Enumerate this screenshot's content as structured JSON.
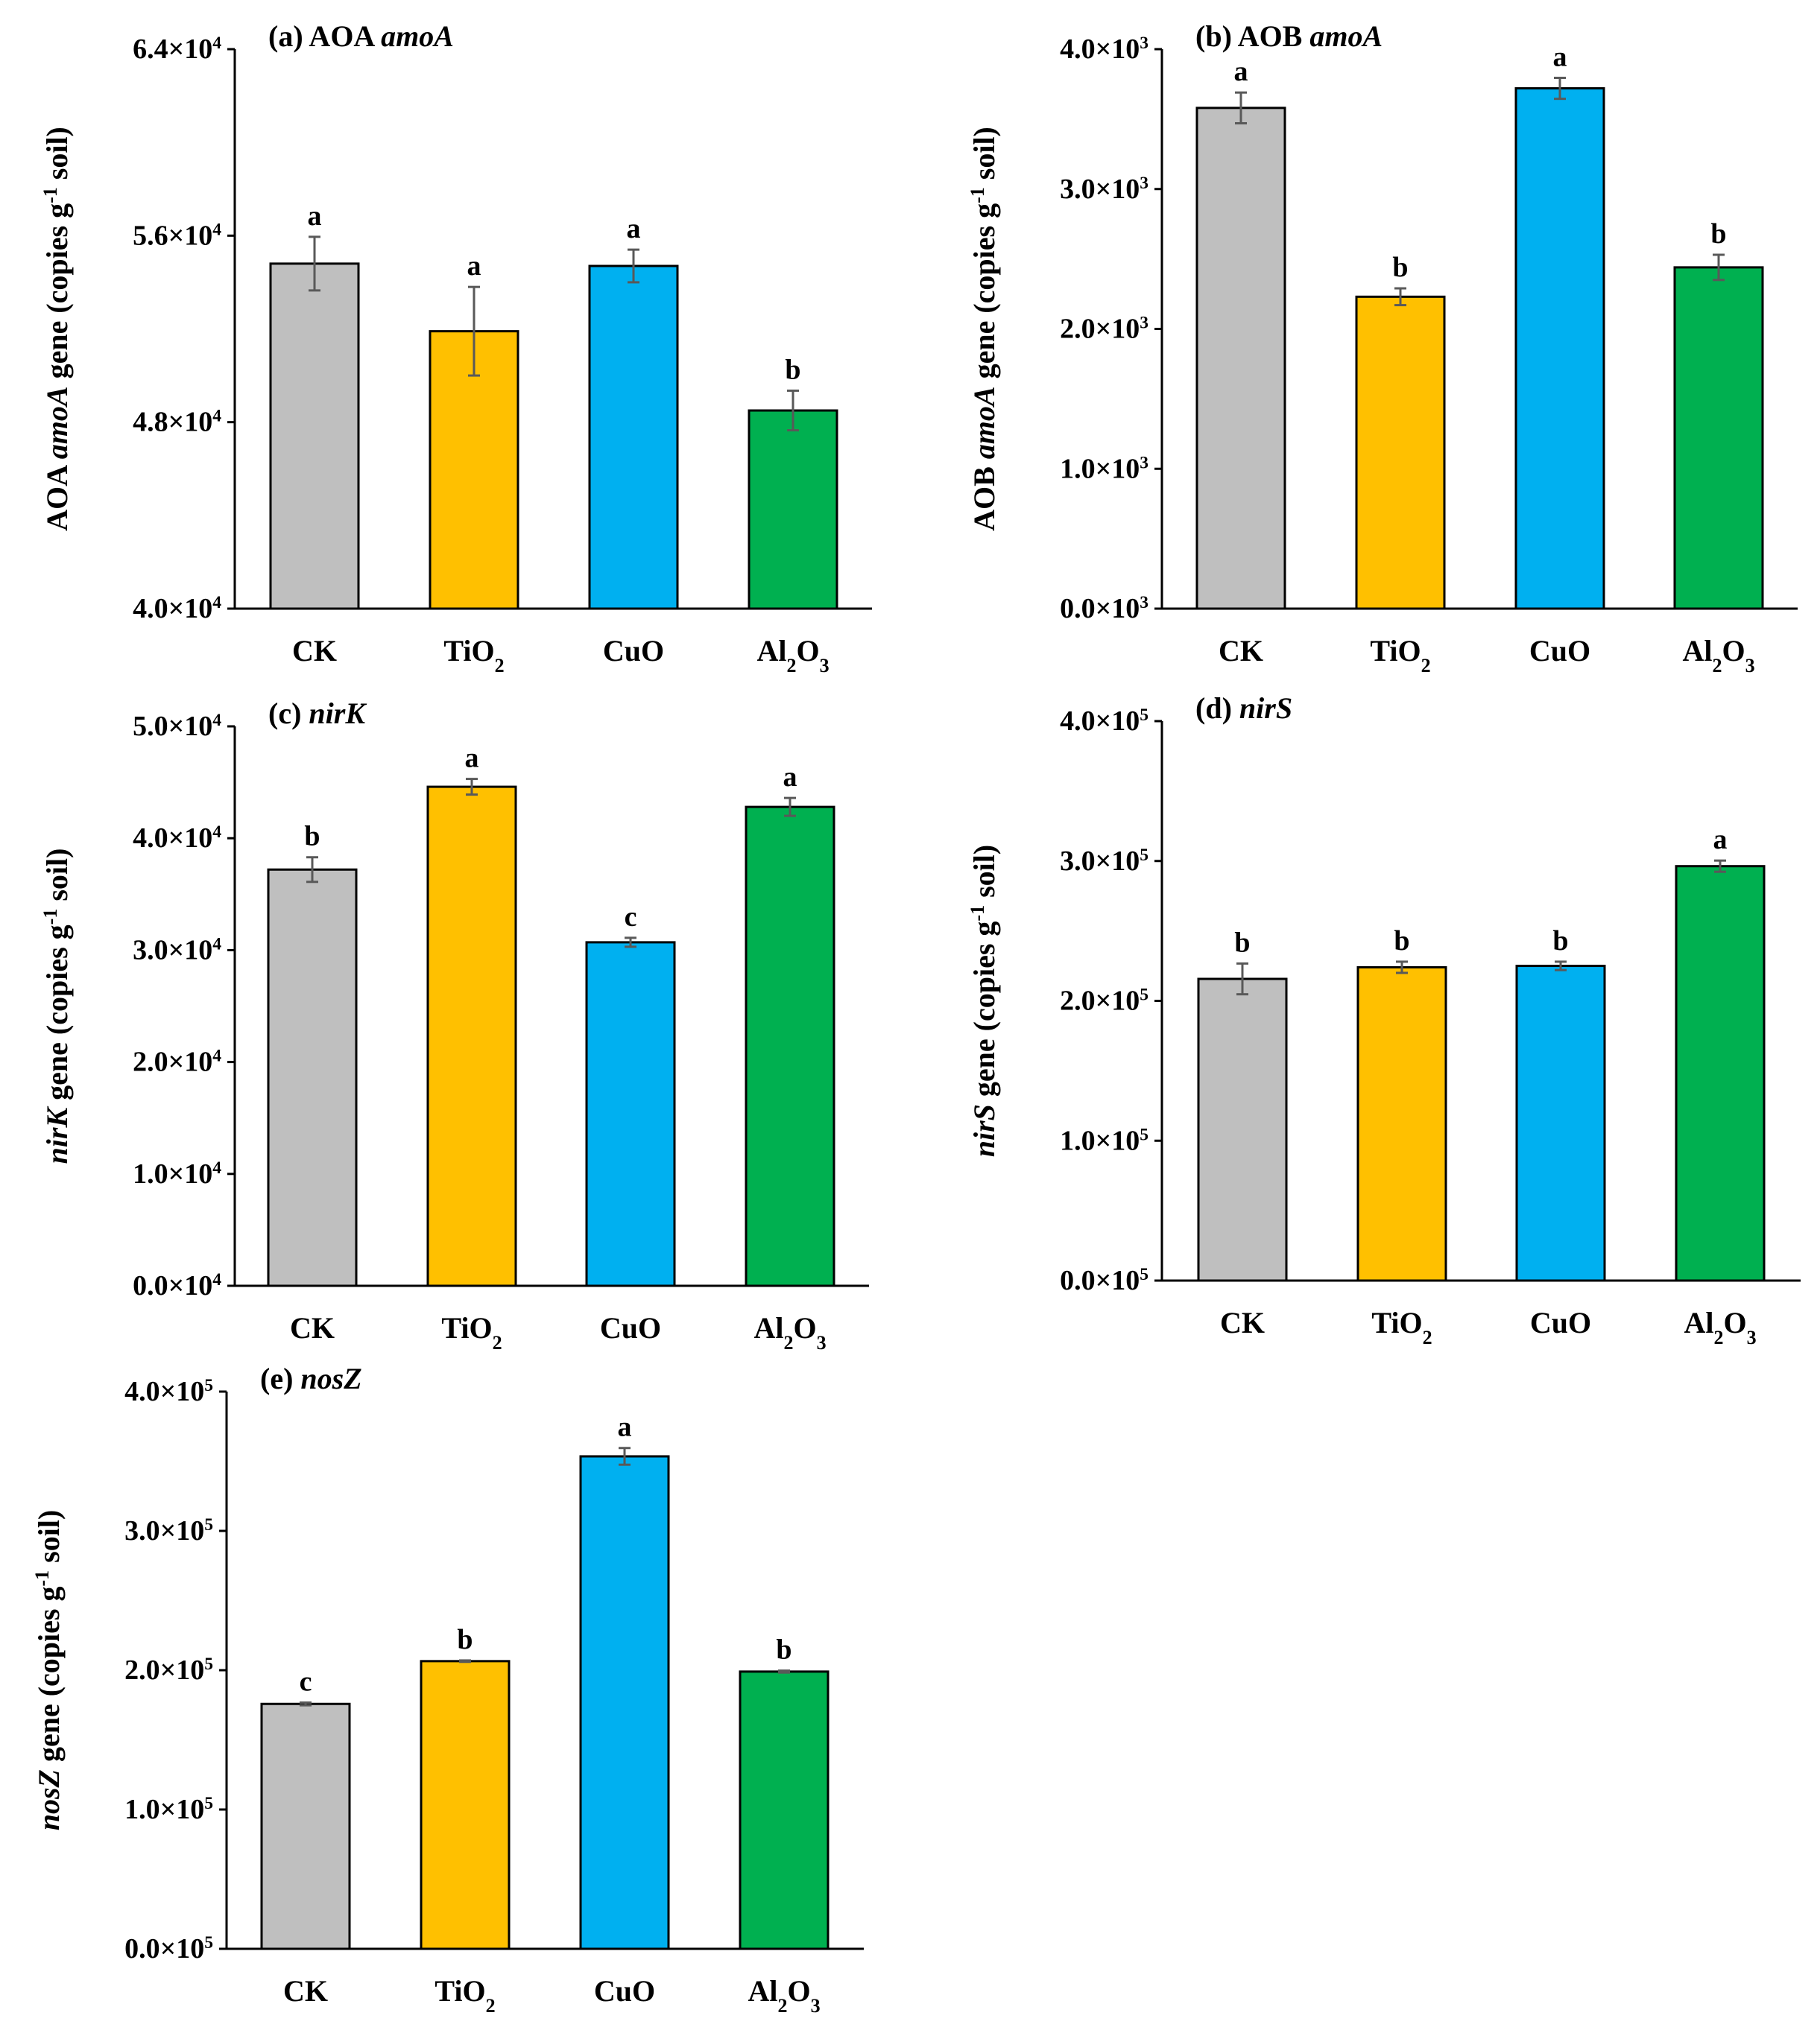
{
  "chart_data": [
    {
      "type": "bar",
      "panel": "a",
      "title": [
        {
          "t": "(a) AOA "
        },
        {
          "t": "amoA",
          "i": true
        }
      ],
      "ylabel": [
        {
          "t": "AOA "
        },
        {
          "t": "amoA",
          "i": true
        },
        {
          "t": " gene (copies g"
        },
        {
          "t": "-1",
          "sup": true
        },
        {
          "t": " soil)"
        }
      ],
      "categories": [
        "CK",
        "TiO2",
        "CuO",
        "Al2O3"
      ],
      "values": [
        54800,
        51900,
        54700,
        48500
      ],
      "errors": [
        1150,
        1900,
        700,
        850
      ],
      "letters": [
        "a",
        "a",
        "a",
        "b"
      ],
      "ylim": [
        40000,
        64000
      ],
      "ticks": [
        40000,
        48000,
        56000,
        64000
      ],
      "tick_labels": [
        {
          "m": "4.0×10",
          "e": "4"
        },
        {
          "m": "4.8×10",
          "e": "4"
        },
        {
          "m": "5.6×10",
          "e": "4"
        },
        {
          "m": "6.4×10",
          "e": "4"
        }
      ]
    },
    {
      "type": "bar",
      "panel": "b",
      "title": [
        {
          "t": "(b) AOB "
        },
        {
          "t": "amoA",
          "i": true
        }
      ],
      "ylabel": [
        {
          "t": "AOB "
        },
        {
          "t": "amoA",
          "i": true
        },
        {
          "t": " gene (copies g"
        },
        {
          "t": "-1",
          "sup": true
        },
        {
          "t": " soil)"
        }
      ],
      "categories": [
        "CK",
        "TiO2",
        "CuO",
        "Al2O3"
      ],
      "values": [
        3580,
        2230,
        3720,
        2440
      ],
      "errors": [
        110,
        60,
        75,
        90
      ],
      "letters": [
        "a",
        "b",
        "a",
        "b"
      ],
      "ylim": [
        0,
        4000
      ],
      "ticks": [
        0,
        1000,
        2000,
        3000,
        4000
      ],
      "tick_labels": [
        {
          "m": "0.0×10",
          "e": "3"
        },
        {
          "m": "1.0×10",
          "e": "3"
        },
        {
          "m": "2.0×10",
          "e": "3"
        },
        {
          "m": "3.0×10",
          "e": "3"
        },
        {
          "m": "4.0×10",
          "e": "3"
        }
      ]
    },
    {
      "type": "bar",
      "panel": "c",
      "title": [
        {
          "t": "(c) "
        },
        {
          "t": "nirK",
          "i": true
        }
      ],
      "ylabel": [
        {
          "t": "nirK",
          "i": true
        },
        {
          "t": " gene (copies g"
        },
        {
          "t": "-1",
          "sup": true
        },
        {
          "t": " soil)"
        }
      ],
      "categories": [
        "CK",
        "TiO2",
        "CuO",
        "Al2O3"
      ],
      "values": [
        37200,
        44600,
        30700,
        42800
      ],
      "errors": [
        1100,
        700,
        400,
        800
      ],
      "letters": [
        "b",
        "a",
        "c",
        "a"
      ],
      "ylim": [
        0,
        50000
      ],
      "ticks": [
        0,
        10000,
        20000,
        30000,
        40000,
        50000
      ],
      "tick_labels": [
        {
          "m": "0.0×10",
          "e": "4"
        },
        {
          "m": "1.0×10",
          "e": "4"
        },
        {
          "m": "2.0×10",
          "e": "4"
        },
        {
          "m": "3.0×10",
          "e": "4"
        },
        {
          "m": "4.0×10",
          "e": "4"
        },
        {
          "m": "5.0×10",
          "e": "4"
        }
      ]
    },
    {
      "type": "bar",
      "panel": "d",
      "title": [
        {
          "t": "(d) "
        },
        {
          "t": "nirS",
          "i": true
        }
      ],
      "ylabel": [
        {
          "t": "nirS",
          "i": true
        },
        {
          "t": " gene (copies g"
        },
        {
          "t": "-1",
          "sup": true
        },
        {
          "t": " soil)"
        }
      ],
      "categories": [
        "CK",
        "TiO2",
        "CuO",
        "Al2O3"
      ],
      "values": [
        215700,
        224000,
        225000,
        296300
      ],
      "errors": [
        11000,
        4000,
        3000,
        4000
      ],
      "letters": [
        "b",
        "b",
        "b",
        "a"
      ],
      "ylim": [
        0,
        400000
      ],
      "ticks": [
        0,
        100000,
        200000,
        300000,
        400000
      ],
      "tick_labels": [
        {
          "m": "0.0×10",
          "e": "5"
        },
        {
          "m": "1.0×10",
          "e": "5"
        },
        {
          "m": "2.0×10",
          "e": "5"
        },
        {
          "m": "3.0×10",
          "e": "5"
        },
        {
          "m": "4.0×10",
          "e": "5"
        }
      ]
    },
    {
      "type": "bar",
      "panel": "e",
      "title": [
        {
          "t": "(e) "
        },
        {
          "t": "nosZ",
          "i": true
        }
      ],
      "ylabel": [
        {
          "t": "nosZ",
          "i": true
        },
        {
          "t": " gene (copies g"
        },
        {
          "t": "-1",
          "sup": true
        },
        {
          "t": " soil)"
        }
      ],
      "categories": [
        "CK",
        "TiO2",
        "CuO",
        "Al2O3"
      ],
      "values": [
        175800,
        206500,
        353500,
        199000
      ],
      "errors": [
        1000,
        500,
        6000,
        700
      ],
      "letters": [
        "c",
        "b",
        "a",
        "b"
      ],
      "ylim": [
        0,
        400000
      ],
      "ticks": [
        0,
        100000,
        200000,
        300000,
        400000
      ],
      "tick_labels": [
        {
          "m": "0.0×10",
          "e": "5"
        },
        {
          "m": "1.0×10",
          "e": "5"
        },
        {
          "m": "2.0×10",
          "e": "5"
        },
        {
          "m": "3.0×10",
          "e": "5"
        },
        {
          "m": "4.0×10",
          "e": "5"
        }
      ]
    }
  ],
  "colors": {
    "CK": "#bfbfbf",
    "TiO2": "#ffc000",
    "CuO": "#00b0f0",
    "Al2O3": "#00b050",
    "error": "#595959"
  }
}
